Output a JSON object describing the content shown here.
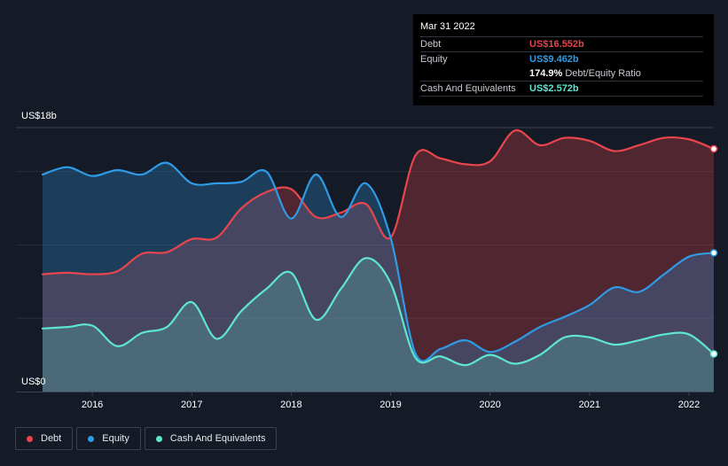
{
  "tooltip": {
    "date": "Mar 31 2022",
    "rows": [
      {
        "label": "Debt",
        "value": "US$16.552b",
        "color": "#e8454d"
      },
      {
        "label": "Equity",
        "value": "US$9.462b",
        "color": "#2f9be6"
      },
      {
        "label": "Cash And Equivalents",
        "value": "US$2.572b",
        "color": "#5ee6cf"
      }
    ],
    "ratio_value": "174.9%",
    "ratio_label": "Debt/Equity Ratio"
  },
  "legend": [
    {
      "label": "Debt",
      "color": "#e8454d"
    },
    {
      "label": "Equity",
      "color": "#2f9be6"
    },
    {
      "label": "Cash And Equivalents",
      "color": "#5ee6cf"
    }
  ],
  "chart_data": {
    "type": "area",
    "title": "",
    "xlabel": "",
    "ylabel": "",
    "y_top_label": "US$18b",
    "y_bottom_label": "US$0",
    "ylim": [
      0,
      18
    ],
    "xlim": [
      2015.5,
      2022.25
    ],
    "x_tick_labels": [
      "2016",
      "2017",
      "2018",
      "2019",
      "2020",
      "2021",
      "2022"
    ],
    "x_ticks": [
      2016,
      2017,
      2018,
      2019,
      2020,
      2021,
      2022
    ],
    "grid": true,
    "legend_position": "bottom-left",
    "series": [
      {
        "name": "Debt",
        "color": "#e8454d",
        "x": [
          2015.5,
          2015.75,
          2016.0,
          2016.25,
          2016.5,
          2016.75,
          2017.0,
          2017.25,
          2017.5,
          2017.75,
          2018.0,
          2018.25,
          2018.5,
          2018.75,
          2019.0,
          2019.25,
          2019.5,
          2019.75,
          2020.0,
          2020.25,
          2020.5,
          2020.75,
          2021.0,
          2021.25,
          2021.5,
          2021.75,
          2022.0,
          2022.25
        ],
        "values": [
          8.0,
          8.1,
          8.0,
          8.2,
          9.4,
          9.5,
          10.4,
          10.5,
          12.5,
          13.6,
          13.8,
          11.9,
          12.2,
          12.8,
          10.5,
          16.1,
          15.9,
          15.5,
          15.7,
          17.8,
          16.8,
          17.3,
          17.1,
          16.4,
          16.8,
          17.3,
          17.2,
          16.55
        ]
      },
      {
        "name": "Equity",
        "color": "#2f9be6",
        "x": [
          2015.5,
          2015.75,
          2016.0,
          2016.25,
          2016.5,
          2016.75,
          2017.0,
          2017.25,
          2017.5,
          2017.75,
          2018.0,
          2018.25,
          2018.5,
          2018.75,
          2019.0,
          2019.25,
          2019.5,
          2019.75,
          2020.0,
          2020.25,
          2020.5,
          2020.75,
          2021.0,
          2021.25,
          2021.5,
          2021.75,
          2022.0,
          2022.25
        ],
        "values": [
          14.8,
          15.3,
          14.7,
          15.1,
          14.8,
          15.6,
          14.2,
          14.2,
          14.3,
          15.0,
          11.8,
          14.8,
          11.9,
          14.2,
          10.5,
          2.6,
          2.9,
          3.5,
          2.7,
          3.4,
          4.4,
          5.1,
          5.9,
          7.1,
          6.8,
          8.0,
          9.2,
          9.46
        ]
      },
      {
        "name": "Cash And Equivalents",
        "color": "#5ee6cf",
        "x": [
          2015.5,
          2015.75,
          2016.0,
          2016.25,
          2016.5,
          2016.75,
          2017.0,
          2017.25,
          2017.5,
          2017.75,
          2018.0,
          2018.25,
          2018.5,
          2018.75,
          2019.0,
          2019.25,
          2019.5,
          2019.75,
          2020.0,
          2020.25,
          2020.5,
          2020.75,
          2021.0,
          2021.25,
          2021.5,
          2021.75,
          2022.0,
          2022.25
        ],
        "values": [
          4.3,
          4.4,
          4.5,
          3.1,
          4.0,
          4.4,
          6.1,
          3.6,
          5.5,
          7.0,
          8.1,
          4.9,
          7.0,
          9.1,
          7.4,
          2.3,
          2.4,
          1.8,
          2.5,
          1.9,
          2.5,
          3.7,
          3.7,
          3.2,
          3.5,
          3.9,
          3.9,
          2.57
        ]
      }
    ]
  }
}
